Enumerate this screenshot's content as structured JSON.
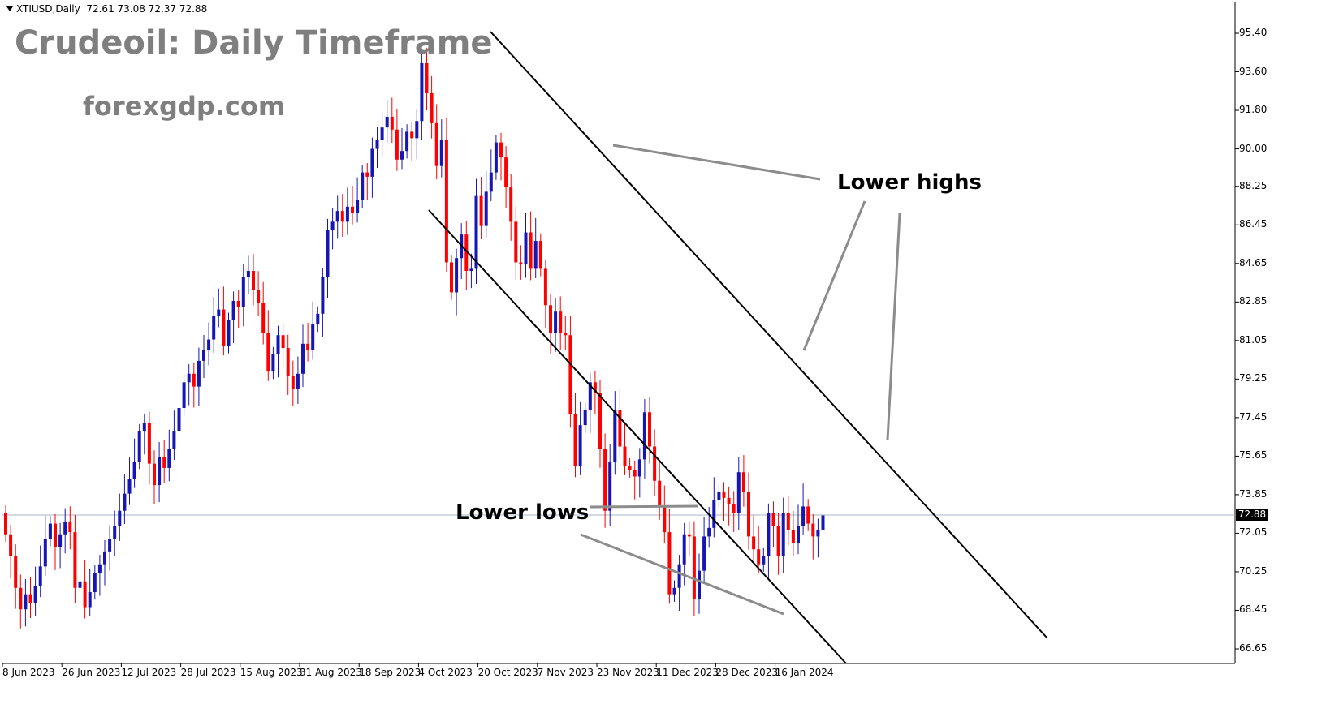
{
  "header": {
    "symbol": "XTIUSD,Daily",
    "ohlc": "72.61 73.08 72.37 72.88"
  },
  "title": "Crudeoil: Daily Timeframe",
  "website": "forexgdp.com",
  "annotations": {
    "lower_highs": "Lower highs",
    "lower_lows": "Lower lows"
  },
  "colors": {
    "bull": "#1616b4",
    "bear": "#ff0000",
    "channel": "#000000",
    "arrow": "#8c8c8c",
    "price_line": "#a9b4c4"
  },
  "chart_data": {
    "type": "candlestick",
    "yaxis_ticks": [
      "95.40",
      "93.60",
      "91.80",
      "90.00",
      "88.25",
      "86.45",
      "84.65",
      "82.85",
      "81.05",
      "79.25",
      "77.45",
      "75.65",
      "73.85",
      "72.05",
      "70.25",
      "68.45",
      "66.65"
    ],
    "xaxis_ticks": [
      "8 Jun 2023",
      "26 Jun 2023",
      "12 Jul 2023",
      "28 Jul 2023",
      "15 Aug 2023",
      "31 Aug 2023",
      "18 Sep 2023",
      "4 Oct 2023",
      "20 Oct 2023",
      "7 Nov 2023",
      "23 Nov 2023",
      "11 Dec 2023",
      "28 Dec 2023",
      "16 Jan 2024"
    ],
    "current_price": "72.88",
    "ylim": [
      66.0,
      96.0
    ],
    "closes": [
      72.0,
      71.0,
      69.5,
      68.5,
      69.2,
      68.8,
      69.6,
      70.5,
      71.8,
      72.5,
      71.4,
      72.0,
      72.6,
      72.1,
      69.5,
      69.8,
      68.6,
      69.3,
      70.2,
      70.6,
      71.2,
      71.8,
      72.4,
      73.1,
      73.9,
      74.6,
      75.4,
      76.8,
      77.2,
      75.3,
      74.3,
      75.6,
      75.1,
      76.0,
      76.8,
      77.9,
      79.1,
      79.5,
      78.9,
      80.1,
      80.6,
      81.1,
      82.2,
      82.5,
      80.8,
      82.0,
      82.9,
      82.6,
      84.0,
      84.3,
      83.4,
      82.8,
      81.4,
      79.6,
      80.4,
      81.3,
      80.7,
      79.4,
      78.8,
      79.5,
      80.9,
      80.6,
      81.8,
      82.3,
      84.0,
      86.2,
      86.6,
      87.1,
      86.6,
      87.3,
      87.0,
      87.6,
      88.9,
      88.7,
      90.0,
      90.4,
      91.0,
      91.5,
      90.9,
      89.5,
      89.9,
      90.8,
      90.5,
      91.3,
      94.0,
      92.6,
      91.2,
      89.2,
      90.4,
      84.7,
      83.3,
      84.9,
      86.0,
      84.3,
      84.4,
      87.8,
      86.4,
      88.0,
      88.9,
      90.3,
      89.6,
      88.2,
      86.6,
      84.7,
      84.6,
      86.1,
      84.4,
      85.7,
      84.4,
      82.7,
      81.4,
      82.4,
      81.4,
      81.3,
      77.6,
      75.2,
      77.1,
      77.8,
      79.1,
      78.6,
      76.0,
      73.1,
      75.4,
      77.8,
      76.1,
      75.2,
      75.0,
      74.7,
      75.5,
      77.7,
      76.1,
      74.5,
      73.3,
      72.1,
      69.2,
      69.5,
      70.6,
      72.0,
      71.9,
      69.0,
      70.3,
      71.9,
      72.3,
      73.6,
      74.0,
      73.7,
      73.4,
      73.0,
      74.9,
      74.0,
      71.9,
      71.3,
      70.6,
      71.0,
      73.0,
      72.4,
      71.0,
      73.0,
      72.2,
      71.6,
      72.4,
      73.3,
      72.5,
      71.9,
      72.2,
      72.88
    ]
  }
}
